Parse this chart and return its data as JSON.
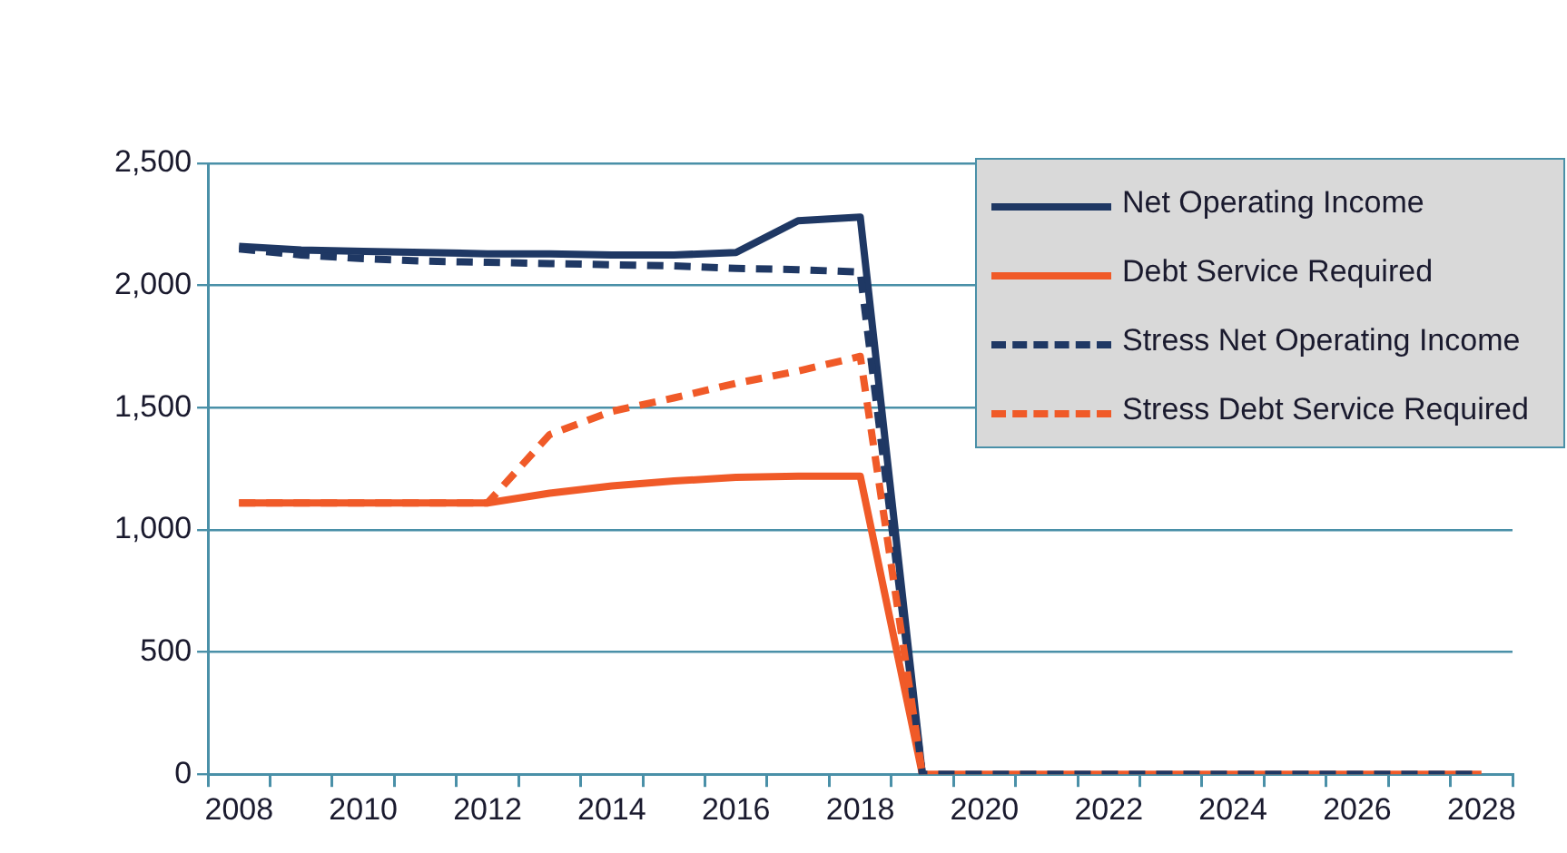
{
  "chart_data": {
    "type": "line",
    "categories": [
      "2008",
      null,
      "2010",
      null,
      "2012",
      null,
      "2014",
      null,
      "2016",
      null,
      "2018",
      null,
      "2020",
      null,
      "2022",
      null,
      "2024",
      null,
      "2026",
      null,
      "2028"
    ],
    "series": [
      {
        "name": "Net Operating Income",
        "color": "#1f3864",
        "line_style": "solid",
        "values": [
          2160,
          2145,
          2140,
          2135,
          2130,
          2130,
          2125,
          2125,
          2135,
          2265,
          2280,
          0,
          null,
          null,
          null,
          null,
          null,
          null,
          null,
          null,
          null
        ]
      },
      {
        "name": "Debt Service Required",
        "color": "#f05a28",
        "line_style": "solid",
        "values": [
          1110,
          1110,
          1110,
          1110,
          1110,
          1150,
          1180,
          1200,
          1215,
          1220,
          1220,
          0,
          0,
          0,
          0,
          0,
          0,
          0,
          0,
          0,
          0
        ]
      },
      {
        "name": "Stress Net Operating Income",
        "color": "#1f3864",
        "line_style": "dashed",
        "values": [
          2150,
          2125,
          2110,
          2100,
          2095,
          2090,
          2085,
          2080,
          2070,
          2065,
          2055,
          0,
          0,
          0,
          0,
          0,
          0,
          0,
          0,
          0,
          0
        ]
      },
      {
        "name": "Stress Debt Service Required",
        "color": "#f05a28",
        "line_style": "dashed",
        "values": [
          1110,
          1110,
          1110,
          1110,
          1110,
          1390,
          1485,
          1540,
          1600,
          1650,
          1710,
          0,
          null,
          null,
          null,
          null,
          null,
          null,
          null,
          null,
          null
        ]
      }
    ],
    "ylim": [
      0,
      2500
    ],
    "yticks": [
      {
        "value": 0,
        "label": "0"
      },
      {
        "value": 500,
        "label": "500"
      },
      {
        "value": 1000,
        "label": "1,000"
      },
      {
        "value": 1500,
        "label": "1,500"
      },
      {
        "value": 2000,
        "label": "2,000"
      },
      {
        "value": 2500,
        "label": "2,500"
      }
    ],
    "grid": "y",
    "legend": "top right",
    "marker": "none"
  }
}
